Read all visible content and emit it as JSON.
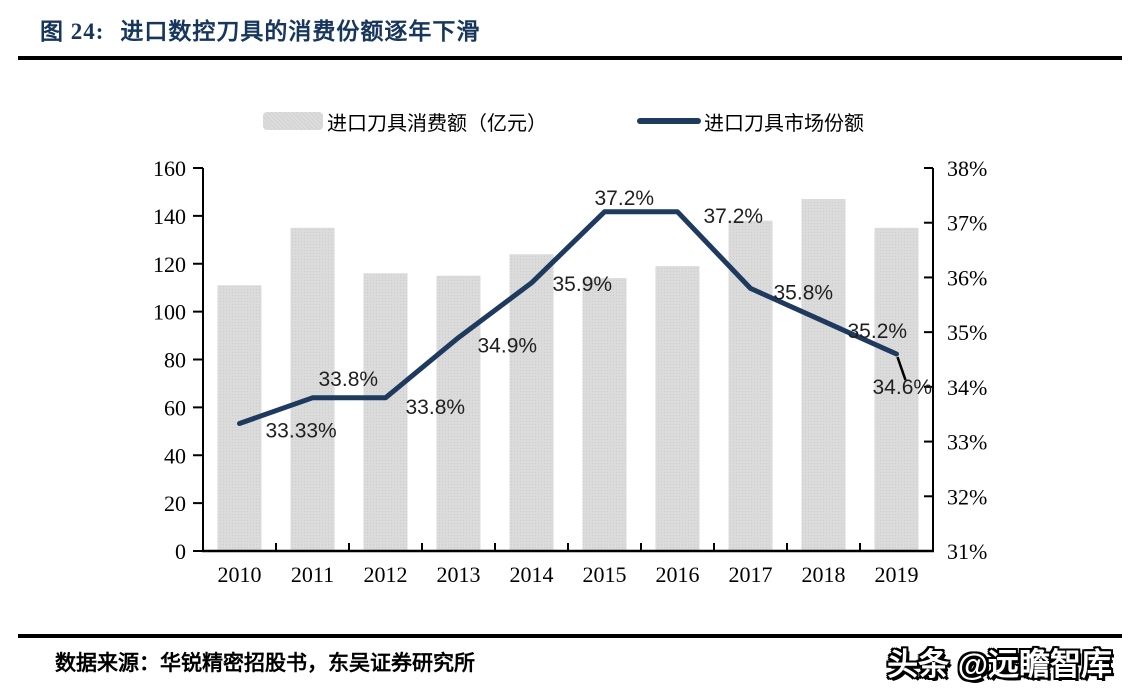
{
  "header": {
    "figure_label": "图 24:",
    "title": "进口数控刀具的消费份额逐年下滑"
  },
  "legend": {
    "bar_label": "进口刀具消费额（亿元）",
    "line_label": "进口刀具市场份额"
  },
  "colors": {
    "title_navy": "#17365d",
    "line_navy": "#1f3a5f",
    "bar_fill": "#d9d9d9",
    "axis_black": "#000000",
    "label_text": "#1f1f1f"
  },
  "chart_data": {
    "type": "bar",
    "combo": "bar+line",
    "title": "进口数控刀具的消费份额逐年下滑",
    "categories": [
      "2010",
      "2011",
      "2012",
      "2013",
      "2014",
      "2015",
      "2016",
      "2017",
      "2018",
      "2019"
    ],
    "series": [
      {
        "name": "进口刀具消费额（亿元）",
        "type": "bar",
        "axis": "left",
        "color": "#d9d9d9",
        "values": [
          111,
          135,
          116,
          115,
          124,
          114,
          119,
          138,
          147,
          135
        ]
      },
      {
        "name": "进口刀具市场份额",
        "type": "line",
        "axis": "right",
        "color": "#1f3a5f",
        "values": [
          33.33,
          33.8,
          33.8,
          34.9,
          35.9,
          37.2,
          37.2,
          35.8,
          35.2,
          34.6
        ],
        "point_labels": [
          "33.33%",
          "33.8%",
          "33.8%",
          "34.9%",
          "35.9%",
          "37.2%",
          "37.2%",
          "35.8%",
          "35.2%",
          "34.6%"
        ]
      }
    ],
    "left_axis": {
      "min": 0,
      "max": 160,
      "step": 20,
      "tick_labels": [
        "0",
        "20",
        "40",
        "60",
        "80",
        "100",
        "120",
        "140",
        "160"
      ]
    },
    "right_axis": {
      "min": 31,
      "max": 38,
      "step": 1,
      "tick_labels": [
        "31%",
        "32%",
        "33%",
        "34%",
        "35%",
        "36%",
        "37%",
        "38%"
      ]
    },
    "grid": false,
    "legend_position": "top"
  },
  "footer": {
    "source": "数据来源：华锐精密招股书，东吴证券研究所",
    "watermark": "头条 @远瞻智库"
  }
}
